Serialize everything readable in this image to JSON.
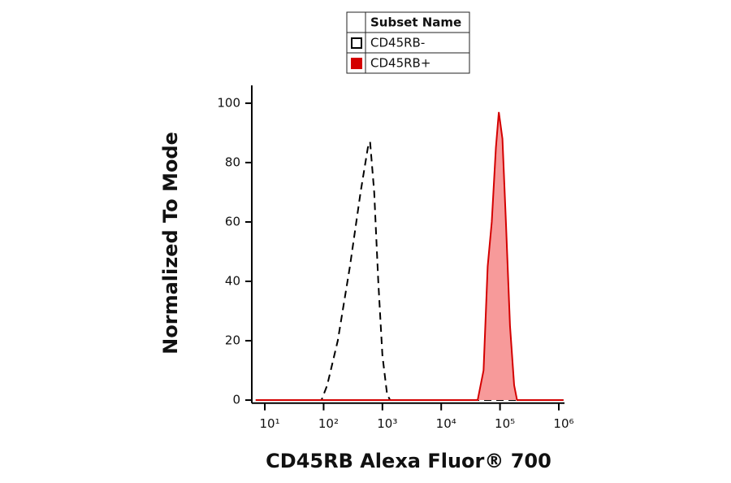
{
  "chart_data": {
    "type": "histogram-log",
    "xlabel": "CD45RB Alexa Fluor® 700",
    "ylabel": "Normalized To Mode",
    "legend_title": "Subset Name",
    "xscale": "log",
    "xlim": [
      6,
      1250000
    ],
    "xticks": [
      {
        "value": 10,
        "label": "10¹"
      },
      {
        "value": 100,
        "label": "10²"
      },
      {
        "value": 1000,
        "label": "10³"
      },
      {
        "value": 10000,
        "label": "10⁴"
      },
      {
        "value": 100000,
        "label": "10⁵"
      },
      {
        "value": 1000000,
        "label": "10⁶"
      }
    ],
    "ylim": [
      -1,
      106
    ],
    "yticks": [
      0,
      20,
      40,
      60,
      80,
      100
    ],
    "series": [
      {
        "name": "CD45RB-",
        "color": "#000000",
        "dashed": true,
        "fill": null,
        "x": [
          7,
          92,
          115,
          174,
          280,
          425,
          565,
          617,
          725,
          850,
          1000,
          1200,
          1350,
          1200000
        ],
        "values": [
          0,
          0,
          5,
          20,
          45,
          70,
          85,
          87,
          70,
          40,
          15,
          2,
          0,
          0
        ]
      },
      {
        "name": "CD45RB+",
        "color": "#d40000",
        "dashed": false,
        "fill": "#f79a9a",
        "x": [
          7,
          41700,
          52500,
          61700,
          72400,
          85100,
          95500,
          110000,
          126000,
          148000,
          174000,
          195000,
          1200000
        ],
        "values": [
          0,
          0,
          10,
          45,
          60,
          85,
          97,
          88,
          60,
          25,
          5,
          0,
          0
        ]
      }
    ]
  }
}
